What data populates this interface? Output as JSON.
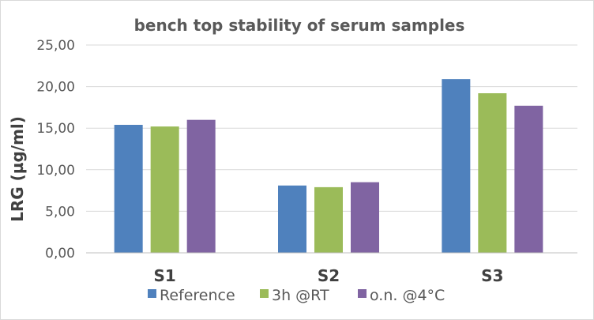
{
  "chart_data": {
    "type": "bar",
    "title": "bench top stability of serum samples",
    "xlabel": "",
    "ylabel": "LRG (µg/ml)",
    "categories": [
      "S1",
      "S2",
      "S3"
    ],
    "series": [
      {
        "name": "Reference",
        "values": [
          15.4,
          8.1,
          20.9
        ],
        "color": "#4f81bd"
      },
      {
        "name": "3h @RT",
        "values": [
          15.2,
          7.9,
          19.2
        ],
        "color": "#9bbb59"
      },
      {
        "name": "o.n. @4°C",
        "values": [
          16.0,
          8.5,
          17.7
        ],
        "color": "#8064a2"
      }
    ],
    "ylim": [
      0,
      25
    ],
    "yticks": [
      "0,00",
      "5,00",
      "10,00",
      "15,00",
      "20,00",
      "25,00"
    ],
    "grid": true,
    "legend_position": "bottom"
  }
}
